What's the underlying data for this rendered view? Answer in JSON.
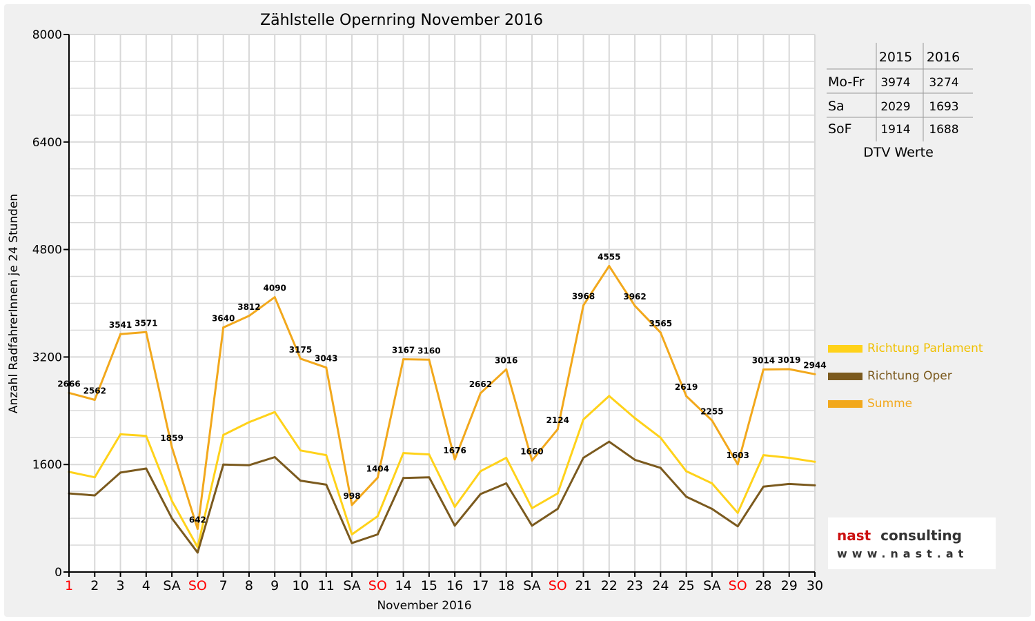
{
  "chart_data": {
    "type": "line",
    "title": "Zählstelle Opernring November 2016",
    "xlabel": "November 2016",
    "ylabel": "Anzahl RadfahrerInnen je 24 Stunden",
    "ylim": [
      0,
      8000
    ],
    "yticks": [
      "0",
      "1600",
      "3200",
      "4800",
      "6400",
      "8000"
    ],
    "ytick_values": [
      0,
      1600,
      3200,
      4800,
      6400,
      8000
    ],
    "categories": [
      "1",
      "2",
      "3",
      "4",
      "SA",
      "SO",
      "7",
      "8",
      "9",
      "10",
      "11",
      "SA",
      "SO",
      "14",
      "15",
      "16",
      "17",
      "18",
      "SA",
      "SO",
      "21",
      "22",
      "23",
      "24",
      "25",
      "SA",
      "SO",
      "28",
      "29",
      "30"
    ],
    "red_categories": [
      0,
      5,
      12,
      19,
      26
    ],
    "grid": true,
    "legend_position": "right",
    "series": [
      {
        "name": "Richtung Parlament",
        "color": "#ffd21a",
        "values": [
          1490,
          1410,
          2050,
          2025,
          1060,
          370,
          2040,
          2230,
          2380,
          1810,
          1740,
          560,
          830,
          1770,
          1750,
          970,
          1500,
          1700,
          950,
          1170,
          2270,
          2620,
          2290,
          2000,
          1500,
          1320,
          880,
          1740,
          1700,
          1640
        ]
      },
      {
        "name": "Richtung Oper",
        "color": "#7b5a1e",
        "values": [
          1170,
          1140,
          1480,
          1540,
          800,
          290,
          1600,
          1590,
          1710,
          1360,
          1300,
          430,
          560,
          1400,
          1410,
          690,
          1160,
          1320,
          690,
          940,
          1700,
          1940,
          1670,
          1550,
          1120,
          940,
          680,
          1270,
          1310,
          1290
        ]
      },
      {
        "name": "Summe",
        "color": "#f2a81c",
        "values": [
          2666,
          2562,
          3541,
          3571,
          1859,
          642,
          3640,
          3812,
          4090,
          3175,
          3043,
          998,
          1404,
          3167,
          3160,
          1676,
          2662,
          3016,
          1660,
          2124,
          3968,
          4555,
          3962,
          3565,
          2619,
          2255,
          1603,
          3014,
          3019,
          2944
        ],
        "data_labels": [
          "2666",
          "2562",
          "3541",
          "3571",
          "1859",
          "642",
          "3640",
          "3812",
          "4090",
          "3175",
          "3043",
          "998",
          "1404",
          "3167",
          "3160",
          "1676",
          "2662",
          "3016",
          "1660",
          "2124",
          "3968",
          "4555",
          "3962",
          "3565",
          "2619",
          "2255",
          "1603",
          "3014",
          "3019",
          "2944"
        ]
      }
    ]
  },
  "dtv_table": {
    "headers": [
      "",
      "2015",
      "2016"
    ],
    "rows": [
      {
        "label": "Mo-Fr",
        "v2015": "3974",
        "v2016": "3274"
      },
      {
        "label": "Sa",
        "v2015": "2029",
        "v2016": "1693"
      },
      {
        "label": "SoF",
        "v2015": "1914",
        "v2016": "1688"
      }
    ],
    "caption": "DTV Werte"
  },
  "logo": {
    "word1": "nast",
    "word2": "consulting",
    "url_text": "www.nast.at",
    "red": "#cc1111",
    "dark": "#333333"
  },
  "colors": {
    "grid": "#d8d8d8",
    "weekend_red": "#ff0000"
  }
}
